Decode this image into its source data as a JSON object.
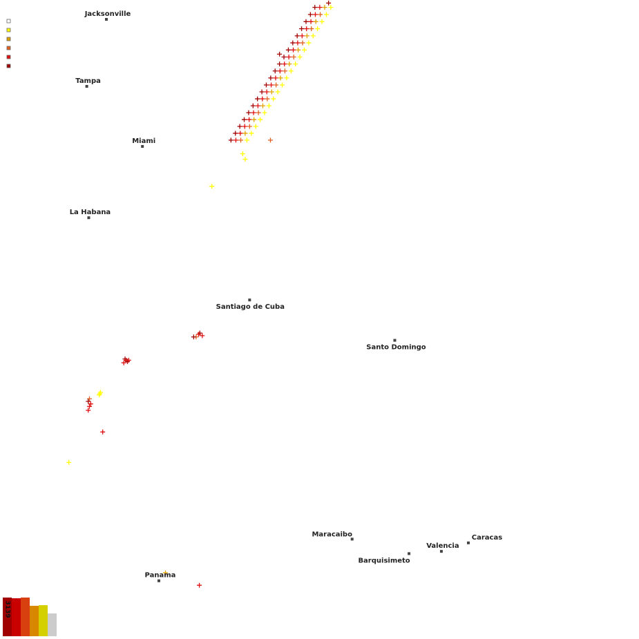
{
  "map": {
    "cities": [
      {
        "name": "Jacksonville",
        "lat": 30.33,
        "lon": -81.66
      },
      {
        "name": "Tampa",
        "lat": 27.95,
        "lon": -82.46
      },
      {
        "name": "Miami",
        "lat": 25.77,
        "lon": -80.19
      },
      {
        "name": "La Habana",
        "lat": 23.13,
        "lon": -82.38
      },
      {
        "name": "Santiago de Cuba",
        "lat": 20.02,
        "lon": -75.82
      },
      {
        "name": "Santo Domingo",
        "lat": 18.47,
        "lon": -69.9
      },
      {
        "name": "Maracaibo",
        "lat": 10.65,
        "lon": -71.64
      },
      {
        "name": "Barquisimeto",
        "lat": 10.07,
        "lon": -69.32
      },
      {
        "name": "Valencia",
        "lat": 10.16,
        "lon": -68.0
      },
      {
        "name": "Caracas",
        "lat": 10.5,
        "lon": -66.9
      },
      {
        "name": "Panama",
        "lat": 8.98,
        "lon": -79.52
      }
    ],
    "age_colors": [
      "#ffffff",
      "#ffff00",
      "#e0a000",
      "#e06020",
      "#e01010",
      "#a00000"
    ],
    "strikes": [
      [
        26.0,
        -76.58,
        5
      ],
      [
        26.0,
        -76.38,
        4
      ],
      [
        26.0,
        -76.18,
        3
      ],
      [
        26.0,
        -75.93,
        1
      ],
      [
        26.25,
        -76.4,
        5
      ],
      [
        26.25,
        -76.2,
        4
      ],
      [
        26.25,
        -76.0,
        2
      ],
      [
        26.25,
        -75.75,
        1
      ],
      [
        26.5,
        -76.22,
        5
      ],
      [
        26.5,
        -76.02,
        4
      ],
      [
        26.5,
        -75.82,
        3
      ],
      [
        26.5,
        -75.57,
        1
      ],
      [
        26.75,
        -76.04,
        5
      ],
      [
        26.75,
        -75.84,
        4
      ],
      [
        26.75,
        -75.64,
        2
      ],
      [
        26.75,
        -75.39,
        1
      ],
      [
        27.0,
        -75.86,
        5
      ],
      [
        27.0,
        -75.66,
        4
      ],
      [
        27.0,
        -75.46,
        3
      ],
      [
        27.0,
        -75.21,
        1
      ],
      [
        27.25,
        -75.68,
        5
      ],
      [
        27.25,
        -75.48,
        4
      ],
      [
        27.25,
        -75.28,
        2
      ],
      [
        27.25,
        -75.03,
        1
      ],
      [
        27.5,
        -75.5,
        5
      ],
      [
        27.5,
        -75.3,
        4
      ],
      [
        27.5,
        -75.1,
        3
      ],
      [
        27.5,
        -74.85,
        1
      ],
      [
        27.75,
        -75.32,
        5
      ],
      [
        27.75,
        -75.12,
        4
      ],
      [
        27.75,
        -74.92,
        2
      ],
      [
        27.75,
        -74.67,
        1
      ],
      [
        28.0,
        -75.14,
        5
      ],
      [
        28.0,
        -74.94,
        4
      ],
      [
        28.0,
        -74.74,
        3
      ],
      [
        28.0,
        -74.49,
        1
      ],
      [
        28.25,
        -74.96,
        5
      ],
      [
        28.25,
        -74.76,
        4
      ],
      [
        28.25,
        -74.56,
        2
      ],
      [
        28.25,
        -74.31,
        1
      ],
      [
        28.5,
        -74.78,
        5
      ],
      [
        28.5,
        -74.58,
        4
      ],
      [
        28.5,
        -74.38,
        3
      ],
      [
        28.5,
        -74.13,
        1
      ],
      [
        28.75,
        -74.6,
        5
      ],
      [
        28.75,
        -74.4,
        4
      ],
      [
        28.75,
        -74.2,
        2
      ],
      [
        28.75,
        -73.95,
        1
      ],
      [
        29.0,
        -74.42,
        5
      ],
      [
        29.0,
        -74.22,
        4
      ],
      [
        29.0,
        -74.02,
        3
      ],
      [
        29.0,
        -73.77,
        1
      ],
      [
        29.25,
        -74.24,
        5
      ],
      [
        29.25,
        -74.04,
        4
      ],
      [
        29.25,
        -73.84,
        2
      ],
      [
        29.25,
        -73.59,
        1
      ],
      [
        29.5,
        -74.06,
        5
      ],
      [
        29.5,
        -73.86,
        4
      ],
      [
        29.5,
        -73.66,
        3
      ],
      [
        29.5,
        -73.41,
        1
      ],
      [
        29.75,
        -73.88,
        5
      ],
      [
        29.75,
        -73.68,
        4
      ],
      [
        29.75,
        -73.48,
        2
      ],
      [
        29.75,
        -73.23,
        1
      ],
      [
        30.0,
        -73.7,
        5
      ],
      [
        30.0,
        -73.5,
        4
      ],
      [
        30.0,
        -73.3,
        3
      ],
      [
        30.0,
        -73.05,
        1
      ],
      [
        30.25,
        -73.52,
        5
      ],
      [
        30.25,
        -73.32,
        4
      ],
      [
        30.25,
        -73.12,
        2
      ],
      [
        30.25,
        -72.87,
        1
      ],
      [
        30.5,
        -73.34,
        5
      ],
      [
        30.5,
        -73.14,
        4
      ],
      [
        30.5,
        -72.94,
        3
      ],
      [
        30.5,
        -72.69,
        1
      ],
      [
        30.75,
        -73.16,
        5
      ],
      [
        30.75,
        -72.96,
        4
      ],
      [
        30.75,
        -72.76,
        2
      ],
      [
        30.75,
        -72.51,
        1
      ],
      [
        30.9,
        -72.6,
        5
      ],
      [
        25.5,
        -76.1,
        1
      ],
      [
        25.3,
        -76.0,
        1
      ],
      [
        26.0,
        -74.97,
        3
      ],
      [
        24.3,
        -77.36,
        1
      ],
      [
        29.1,
        -74.6,
        5
      ],
      [
        18.75,
        -77.85,
        5
      ],
      [
        18.7,
        -77.9,
        4
      ],
      [
        18.6,
        -78.0,
        3
      ],
      [
        18.65,
        -77.75,
        4
      ],
      [
        18.6,
        -78.1,
        5
      ],
      [
        17.75,
        -80.9,
        5
      ],
      [
        17.7,
        -80.85,
        4
      ],
      [
        17.65,
        -80.8,
        5
      ],
      [
        17.6,
        -80.95,
        4
      ],
      [
        17.7,
        -80.75,
        4
      ],
      [
        16.2,
        -82.35,
        3
      ],
      [
        16.0,
        -82.3,
        4
      ],
      [
        15.9,
        -82.35,
        4
      ],
      [
        15.75,
        -82.4,
        4
      ],
      [
        16.1,
        -82.4,
        5
      ],
      [
        16.4,
        -81.93,
        1
      ],
      [
        16.45,
        -81.9,
        1
      ],
      [
        16.35,
        -81.95,
        1
      ],
      [
        14.9,
        -81.81,
        4
      ],
      [
        13.7,
        -83.19,
        1
      ],
      [
        8.8,
        -77.87,
        4
      ],
      [
        9.3,
        -79.25,
        2
      ]
    ],
    "histogram": {
      "values": [
        3139,
        3080,
        3139,
        2470,
        2520,
        1850
      ],
      "colors": [
        "#a00000",
        "#c80000",
        "#d84010",
        "#d88800",
        "#d4d000",
        "#cccccc"
      ],
      "top_label": "3139"
    }
  }
}
